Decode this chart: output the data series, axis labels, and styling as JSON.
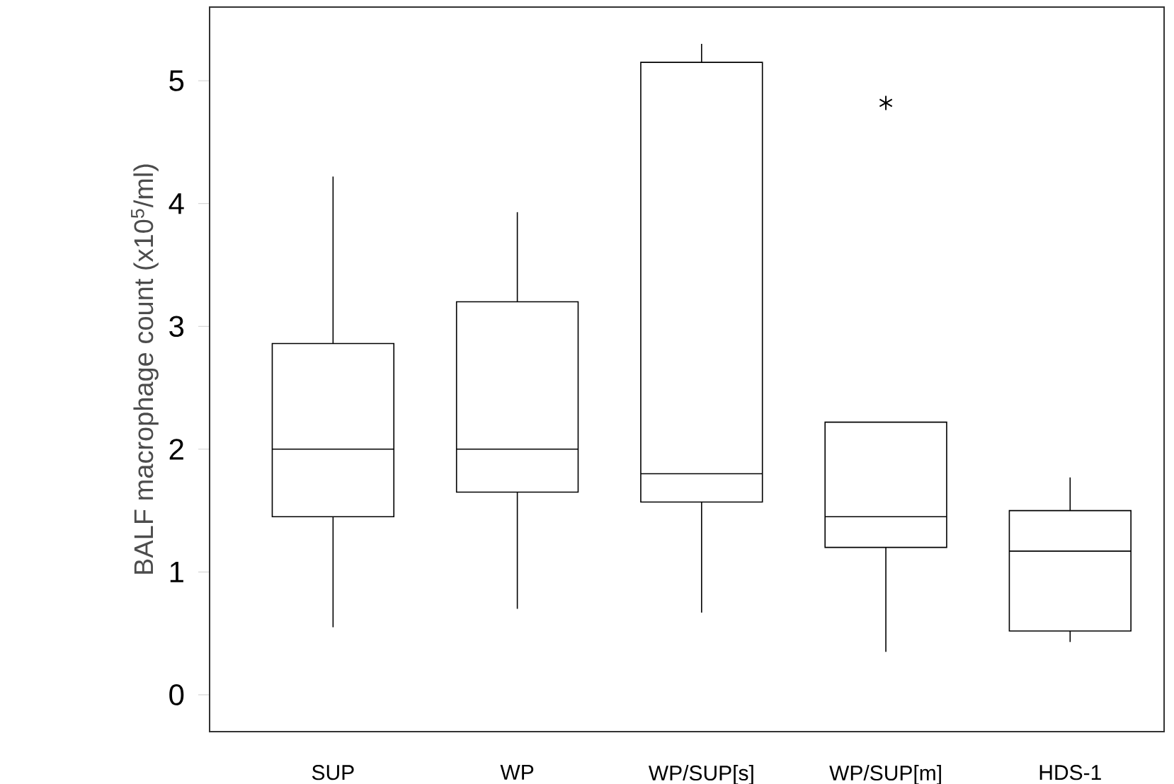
{
  "chart_data": {
    "type": "box",
    "ylabel": "BALF macrophage count (x10$^{5}$/ml)",
    "categories": [
      "SUP",
      "WP",
      "WP/SUP[s]",
      "WP/SUP[m]",
      "HDS-1"
    ],
    "boxes": [
      {
        "low": 0.55,
        "q1": 1.45,
        "median": 2.0,
        "q3": 2.86,
        "high": 4.22
      },
      {
        "low": 0.7,
        "q1": 1.65,
        "median": 2.0,
        "q3": 3.2,
        "high": 3.93
      },
      {
        "low": 0.67,
        "q1": 1.57,
        "median": 1.8,
        "q3": 5.15,
        "high": 5.3
      },
      {
        "low": 0.35,
        "q1": 1.2,
        "median": 1.45,
        "q3": 2.22,
        "high": 2.22,
        "outliers": [
          4.82
        ]
      },
      {
        "low": 0.43,
        "q1": 0.52,
        "median": 1.17,
        "q3": 1.5,
        "high": 1.77
      }
    ],
    "color": "#000000",
    "ylim": [
      -0.3,
      5.6
    ],
    "yticks": [
      0,
      1,
      2,
      3,
      4,
      5
    ],
    "grid": false
  }
}
